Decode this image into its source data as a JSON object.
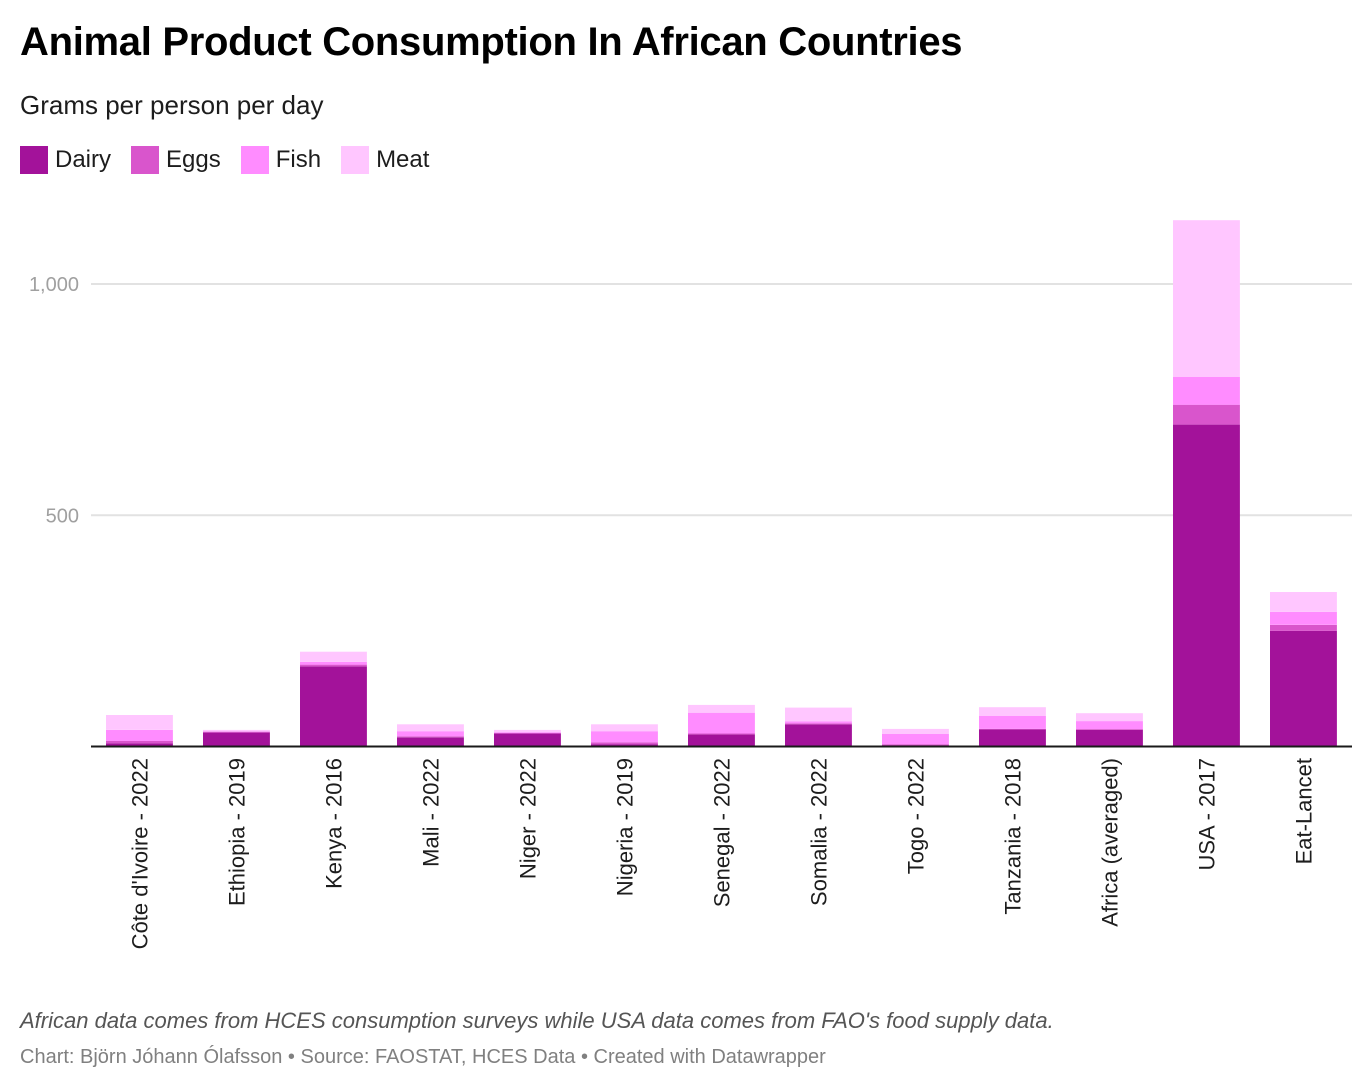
{
  "header": {
    "title": "Animal Product Consumption In African Countries",
    "subtitle": "Grams per person per day"
  },
  "legend": [
    {
      "label": "Dairy",
      "color": "#a3129a"
    },
    {
      "label": "Eggs",
      "color": "#d955cc"
    },
    {
      "label": "Fish",
      "color": "#ff8cff"
    },
    {
      "label": "Meat",
      "color": "#ffc6ff"
    }
  ],
  "footer": {
    "notes": "African data comes from HCES consumption surveys while USA data comes from FAO's food supply data.",
    "credit": "Chart: Björn Jóhann Ólafsson • Source: FAOSTAT, HCES Data • Created with Datawrapper"
  },
  "chart_data": {
    "type": "bar",
    "stacked": true,
    "orientation": "vertical",
    "title": "Animal Product Consumption In African Countries",
    "subtitle": "Grams per person per day",
    "xlabel": "",
    "ylabel": "Grams per person per day",
    "ylim": [
      0,
      1150
    ],
    "yticks": [
      500,
      1000
    ],
    "ytick_labels": [
      "500",
      "1,000"
    ],
    "grid": true,
    "legend_position": "top-left",
    "categories": [
      "Côte d'Ivoire - 2022",
      "Ethiopia - 2019",
      "Kenya - 2016",
      "Mali - 2022",
      "Niger - 2022",
      "Nigeria - 2019",
      "Senegal - 2022",
      "Somalia - 2022",
      "Togo - 2022",
      "Tanzania - 2018",
      "Africa (averaged)",
      "USA - 2017",
      "Eat-Lancet"
    ],
    "series": [
      {
        "name": "Dairy",
        "color": "#a3129a",
        "values": [
          7,
          30,
          173,
          20,
          28,
          5,
          26,
          48,
          3,
          37,
          36,
          696,
          250
        ]
      },
      {
        "name": "Eggs",
        "color": "#d955cc",
        "values": [
          5,
          2,
          4,
          2,
          1,
          4,
          2,
          2,
          2,
          1,
          2,
          43,
          13
        ]
      },
      {
        "name": "Fish",
        "color": "#ff8cff",
        "values": [
          24,
          1,
          6,
          11,
          2,
          24,
          45,
          4,
          22,
          28,
          17,
          60,
          28
        ]
      },
      {
        "name": "Meat",
        "color": "#ffc6ff",
        "values": [
          32,
          3,
          22,
          15,
          5,
          15,
          17,
          30,
          11,
          19,
          17,
          339,
          43
        ]
      }
    ]
  }
}
